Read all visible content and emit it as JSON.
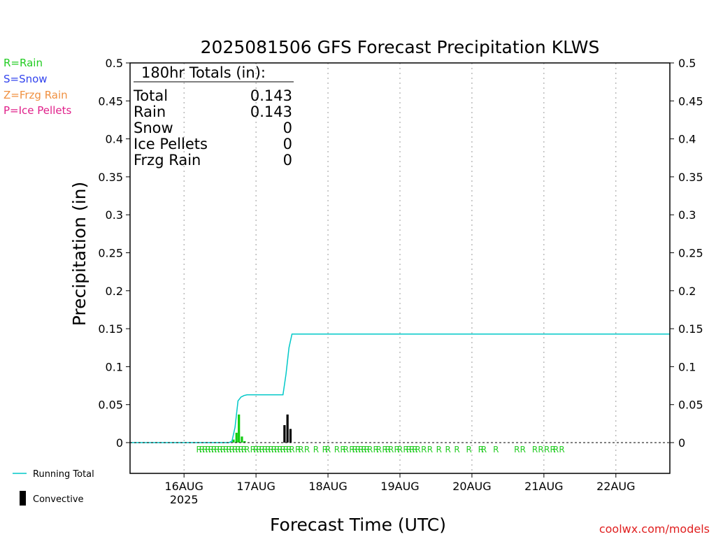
{
  "chart_data": {
    "type": "bar",
    "title": "2025081506 GFS Forecast Precipitation KLWS",
    "xlabel": "Forecast Time (UTC)",
    "ylabel": "Precipitation (in)",
    "ylim": [
      0,
      0.5
    ],
    "xlim_hours": [
      0,
      180
    ],
    "y_ticks": [
      "0",
      "0.05",
      "0.1",
      "0.15",
      "0.2",
      "0.25",
      "0.3",
      "0.35",
      "0.4",
      "0.45",
      "0.5"
    ],
    "x_ticks": [
      {
        "hour": 18,
        "label": "16AUG",
        "sublabel": "2025"
      },
      {
        "hour": 42,
        "label": "17AUG"
      },
      {
        "hour": 66,
        "label": "18AUG"
      },
      {
        "hour": 90,
        "label": "19AUG"
      },
      {
        "hour": 114,
        "label": "20AUG"
      },
      {
        "hour": 138,
        "label": "21AUG"
      },
      {
        "hour": 162,
        "label": "22AUG"
      }
    ],
    "grid": "vertical dotted at day boundaries",
    "legend": {
      "types": [
        {
          "label": "R=Rain",
          "color": "#22cc22"
        },
        {
          "label": "S=Snow",
          "color": "#3344ee"
        },
        {
          "label": "Z=Frzg Rain",
          "color": "#f09040"
        },
        {
          "label": "P=Ice Pellets",
          "color": "#e0208a"
        }
      ],
      "running_total": "Running Total",
      "convective": "Convective"
    },
    "totals": {
      "header": "180hr Totals (in):",
      "rows": [
        {
          "name": "Total",
          "value": "0.143"
        },
        {
          "name": "Rain",
          "value": "0.143"
        },
        {
          "name": "Snow",
          "value": "0"
        },
        {
          "name": "Ice Pellets",
          "value": "0"
        },
        {
          "name": "Frzg Rain",
          "value": "0"
        }
      ]
    },
    "series": [
      {
        "name": "Running Total",
        "color": "#00c8c8",
        "points": [
          [
            0,
            0
          ],
          [
            33,
            0
          ],
          [
            34,
            0.002
          ],
          [
            35,
            0.02
          ],
          [
            36,
            0.055
          ],
          [
            37,
            0.06
          ],
          [
            38,
            0.062
          ],
          [
            39,
            0.063
          ],
          [
            51,
            0.063
          ],
          [
            52,
            0.09
          ],
          [
            53,
            0.125
          ],
          [
            54,
            0.143
          ],
          [
            180,
            0.143
          ]
        ]
      },
      {
        "name": "Rain",
        "color": "#11cc11",
        "bars": [
          [
            34.5,
            0.004
          ],
          [
            35.5,
            0.013
          ],
          [
            36.3,
            0.037
          ],
          [
            37.3,
            0.008
          ],
          [
            38.2,
            0.002
          ]
        ]
      },
      {
        "name": "Convective",
        "color": "#000000",
        "bars": [
          [
            51.5,
            0.023
          ],
          [
            52.5,
            0.037
          ],
          [
            53.5,
            0.018
          ]
        ]
      }
    ],
    "precip_type_hours": [
      23,
      24,
      25,
      26,
      27,
      28,
      29,
      30,
      31,
      32,
      33,
      34,
      35,
      36,
      37,
      38,
      39,
      41,
      42,
      43,
      44,
      45,
      46,
      47,
      48,
      49,
      50,
      51,
      52,
      53,
      54,
      56,
      57,
      59,
      62,
      65,
      66,
      69,
      71,
      72,
      74,
      75,
      76,
      77,
      78,
      79,
      80,
      82,
      83,
      85,
      86,
      87,
      89,
      90,
      92,
      93,
      94,
      95,
      96,
      98,
      100,
      103,
      106,
      109,
      113,
      117,
      118,
      122,
      129,
      131,
      135,
      137,
      139,
      141,
      142,
      144
    ],
    "precip_type_letter": "R",
    "credit": "coolwx.com/models"
  }
}
